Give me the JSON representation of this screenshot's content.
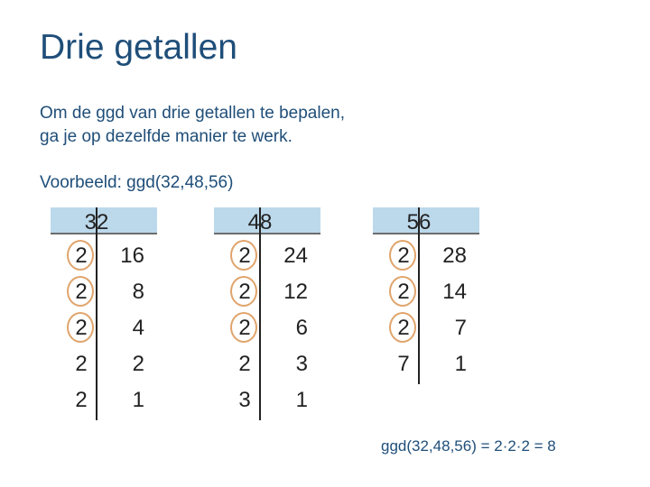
{
  "title": "Drie getallen",
  "intro": {
    "line1": "Om de ggd van drie getallen te bepalen,",
    "line2": "ga je op dezelfde manier te werk."
  },
  "example": "Voorbeeld: ggd(32,48,56)",
  "ladders": [
    {
      "number": "32",
      "rows": [
        {
          "divisor": "2",
          "quotient": "16",
          "circled": true
        },
        {
          "divisor": "2",
          "quotient": "8",
          "circled": true
        },
        {
          "divisor": "2",
          "quotient": "4",
          "circled": true
        },
        {
          "divisor": "2",
          "quotient": "2",
          "circled": false
        },
        {
          "divisor": "2",
          "quotient": "1",
          "circled": false
        }
      ]
    },
    {
      "number": "48",
      "rows": [
        {
          "divisor": "2",
          "quotient": "24",
          "circled": true
        },
        {
          "divisor": "2",
          "quotient": "12",
          "circled": true
        },
        {
          "divisor": "2",
          "quotient": "6",
          "circled": true
        },
        {
          "divisor": "2",
          "quotient": "3",
          "circled": false
        },
        {
          "divisor": "3",
          "quotient": "1",
          "circled": false
        }
      ]
    },
    {
      "number": "56",
      "rows": [
        {
          "divisor": "2",
          "quotient": "28",
          "circled": true
        },
        {
          "divisor": "2",
          "quotient": "14",
          "circled": true
        },
        {
          "divisor": "2",
          "quotient": "7",
          "circled": true
        },
        {
          "divisor": "7",
          "quotient": "1",
          "circled": false
        }
      ]
    }
  ],
  "result": "ggd(32,48,56) = 2·2·2 = 8",
  "colors": {
    "title": "#1f4e79",
    "band": "#bcd9ec",
    "circle": "#e0a46c"
  }
}
